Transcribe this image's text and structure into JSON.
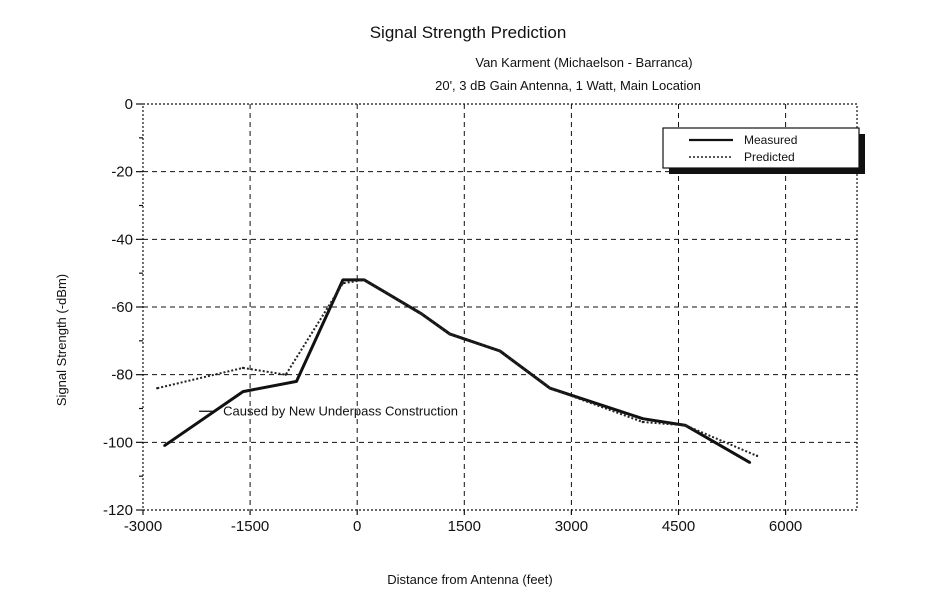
{
  "chart_data": {
    "type": "line",
    "title": "Signal Strength Prediction",
    "subtitle_lines": [
      "Van Karment (Michaelson - Barranca)",
      "20', 3 dB Gain Antenna, 1 Watt, Main Location"
    ],
    "xlabel": "Distance from Antenna (feet)",
    "ylabel": "Signal Strength (-dBm)",
    "xlim": [
      -3000,
      7000
    ],
    "ylim": [
      -120,
      0
    ],
    "x_ticks": [
      -3000,
      -1500,
      0,
      1500,
      3000,
      4500,
      6000
    ],
    "x_tick_labels": [
      "-3000",
      "-1500",
      "0",
      "1500",
      "3000",
      "4500",
      "6000"
    ],
    "y_ticks": [
      0,
      -20,
      -40,
      -60,
      -80,
      -100,
      -120
    ],
    "y_tick_labels": [
      "0",
      "-20",
      "-40",
      "-60",
      "-80",
      "-100",
      "-120"
    ],
    "x_grid": [
      -1500,
      0,
      1500,
      3000,
      4500,
      6000
    ],
    "y_grid": [
      -20,
      -40,
      -60,
      -80,
      -100
    ],
    "grid": true,
    "legend_position": "top-right",
    "series": [
      {
        "name": "Measured",
        "style": "solid",
        "color": "#111111",
        "x": [
          -2700,
          -1600,
          -850,
          -200,
          100,
          900,
          1300,
          2000,
          2700,
          4000,
          4600,
          5500
        ],
        "y": [
          -101,
          -85,
          -82,
          -52,
          -52,
          -62,
          -68,
          -73,
          -84,
          -93,
          -95,
          -106
        ]
      },
      {
        "name": "Predicted",
        "style": "dotted",
        "color": "#222222",
        "x": [
          -2800,
          -1600,
          -1000,
          -200,
          100,
          900,
          1300,
          2000,
          2700,
          4000,
          4600,
          5600
        ],
        "y": [
          -84,
          -78,
          -80,
          -53,
          -52,
          -62,
          -68,
          -73,
          -84,
          -94,
          -95,
          -104
        ]
      }
    ],
    "annotation": {
      "text": "Caused by New Underpass Construction",
      "x": -1850,
      "y": -92
    }
  }
}
